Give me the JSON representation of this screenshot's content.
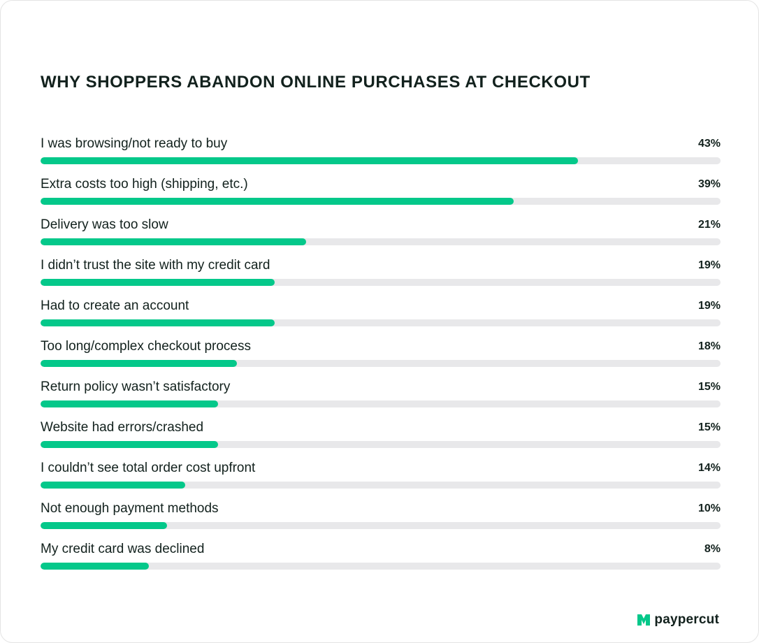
{
  "chart_data": {
    "type": "bar",
    "orientation": "horizontal",
    "title": "WHY SHOPPERS ABANDON ONLINE PURCHASES AT CHECKOUT",
    "categories": [
      "I was browsing/not ready to buy",
      "Extra costs too high (shipping, etc.)",
      "Delivery was too slow",
      "I didn’t trust the site with my credit card",
      "Had to create an account",
      "Too long/complex checkout process",
      "Return policy wasn’t satisfactory",
      "Website had errors/crashed",
      "I couldn’t see total order cost upfront",
      "Not enough payment methods",
      "My credit card was declined"
    ],
    "values": [
      43,
      39,
      21,
      19,
      19,
      18,
      15,
      15,
      14,
      10,
      8
    ],
    "value_labels": [
      "43%",
      "39%",
      "21%",
      "19%",
      "19%",
      "18%",
      "15%",
      "15%",
      "14%",
      "10%",
      "8%"
    ],
    "bar_fill_fractions": [
      0.79,
      0.696,
      0.391,
      0.344,
      0.344,
      0.289,
      0.261,
      0.261,
      0.213,
      0.186,
      0.159
    ],
    "grid": false,
    "legend": "none"
  },
  "colors": {
    "bar": "#04c88a",
    "track": "#e8e8ea",
    "text": "#12211d",
    "logo_mark": "#04c88a"
  },
  "brand": {
    "name": "paypercut",
    "icon": "paypercut-logo-icon"
  }
}
